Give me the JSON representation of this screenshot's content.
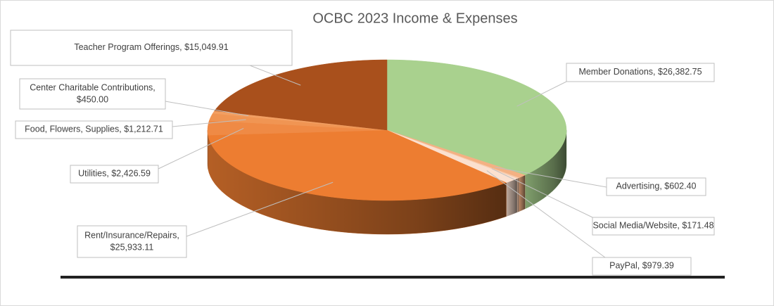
{
  "chart_data": {
    "type": "pie3d",
    "title": "OCBC 2023 Income & Expenses",
    "categories": [
      "Member Donations",
      "Advertising",
      "Social Media/Website",
      "PayPal",
      "Rent/Insurance/Repairs",
      "Utilities",
      "Food, Flowers, Supplies",
      "Center Charitable Contributions",
      "Teacher Program Offerings"
    ],
    "values": [
      26382.75,
      602.4,
      171.48,
      979.39,
      25933.11,
      2426.59,
      1212.71,
      450.0,
      15049.91
    ],
    "value_labels": [
      "$26,382.75",
      "$602.40",
      "$171.48",
      "$979.39",
      "$25,933.11",
      "$2,426.59",
      "$1,212.71",
      "$450.00",
      "$15,049.91"
    ],
    "colors": [
      "#a9d18e",
      "#f4b183",
      "#f8cbad",
      "#fbe0cf",
      "#ed7d31",
      "#ef8a45",
      "#f09553",
      "#f29f62",
      "#a9501c"
    ]
  }
}
